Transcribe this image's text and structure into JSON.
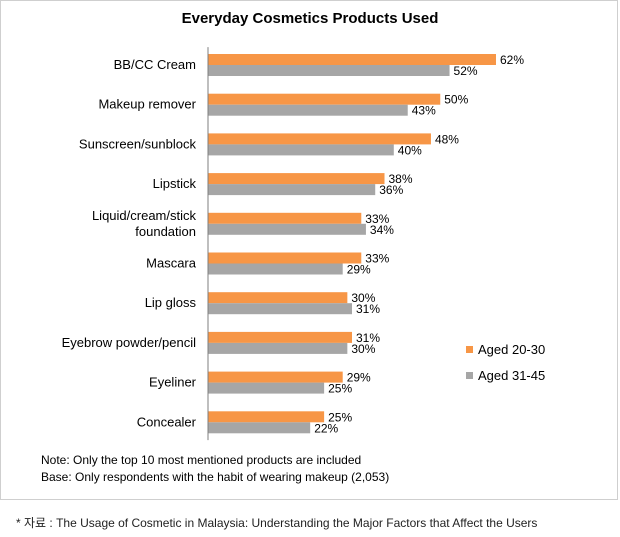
{
  "chart_data": {
    "type": "bar",
    "orientation": "horizontal",
    "title": "Everyday Cosmetics Products Used",
    "categories": [
      "BB/CC Cream",
      "Makeup remover",
      "Sunscreen/sunblock",
      "Lipstick",
      "Liquid/cream/stick foundation",
      "Mascara",
      "Lip gloss",
      "Eyebrow powder/pencil",
      "Eyeliner",
      "Concealer"
    ],
    "category_lines": [
      [
        "BB/CC Cream"
      ],
      [
        "Makeup remover"
      ],
      [
        "Sunscreen/sunblock"
      ],
      [
        "Lipstick"
      ],
      [
        "Liquid/cream/stick",
        "foundation"
      ],
      [
        "Mascara"
      ],
      [
        "Lip gloss"
      ],
      [
        "Eyebrow powder/pencil"
      ],
      [
        "Eyeliner"
      ],
      [
        "Concealer"
      ]
    ],
    "series": [
      {
        "name": "Aged 20-30",
        "color": "#F79646",
        "values": [
          62,
          50,
          48,
          38,
          33,
          33,
          30,
          31,
          29,
          25
        ]
      },
      {
        "name": "Aged 31-45",
        "color": "#A6A6A6",
        "values": [
          52,
          43,
          40,
          36,
          34,
          29,
          31,
          30,
          25,
          22
        ]
      }
    ],
    "value_suffix": "%",
    "xlim": [
      0,
      70
    ],
    "grid": false,
    "legend_position": "right"
  },
  "notes": [
    "Note: Only the top 10 most mentioned products are included",
    "Base: Only respondents with the habit of wearing makeup (2,053)"
  ],
  "source": "* 자료 : The Usage of Cosmetic in Malaysia: Understanding the Major Factors that Affect the Users"
}
